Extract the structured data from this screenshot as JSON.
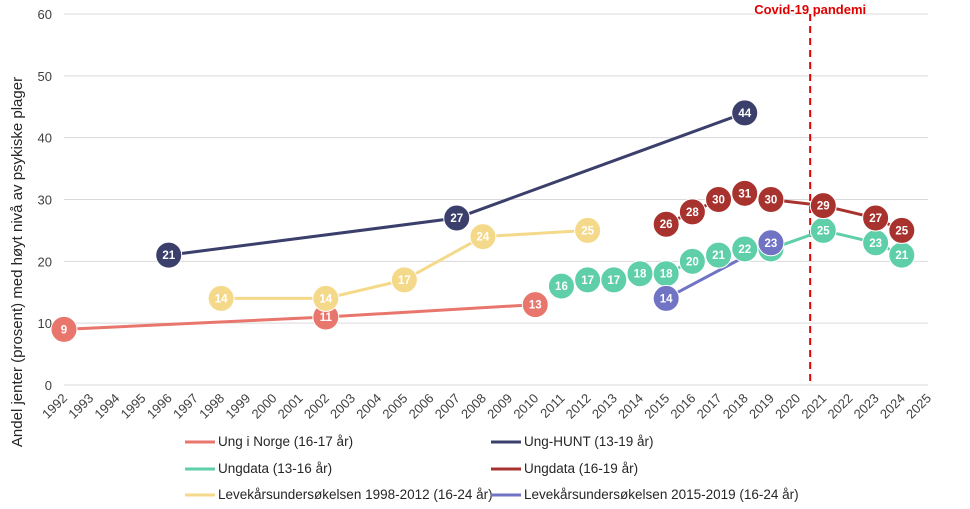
{
  "chart_data": {
    "type": "line",
    "title": "",
    "xlabel": "",
    "ylabel": "Andel jenter (prosent) med høyt nivå av psykiske plager",
    "xlim": [
      1992,
      2025
    ],
    "ylim": [
      0,
      60
    ],
    "y_ticks": [
      0,
      10,
      20,
      30,
      40,
      50,
      60
    ],
    "x_ticks": [
      1992,
      1993,
      1994,
      1995,
      1996,
      1997,
      1998,
      1999,
      2000,
      2001,
      2002,
      2003,
      2004,
      2005,
      2006,
      2007,
      2008,
      2009,
      2010,
      2011,
      2012,
      2013,
      2014,
      2015,
      2016,
      2017,
      2018,
      2019,
      2020,
      2021,
      2022,
      2023,
      2024,
      2025
    ],
    "grid": "horizontal",
    "legend_position": "bottom",
    "annotation": {
      "label": "Covid-19 pandemi",
      "x": 2020.5,
      "color": "#e00000"
    },
    "series": [
      {
        "name": "Ung i Norge (16-17 år)",
        "color": "#e8766d",
        "points": [
          [
            1992,
            9
          ],
          [
            2002,
            11
          ],
          [
            2010,
            13
          ]
        ]
      },
      {
        "name": "Ung-HUNT (13-19 år)",
        "color": "#3b3f6b",
        "points": [
          [
            1996,
            21
          ],
          [
            2007,
            27
          ],
          [
            2018,
            44
          ]
        ]
      },
      {
        "name": "Ungdata (13-16 år)",
        "color": "#5ecfa8",
        "points": [
          [
            2011,
            16
          ],
          [
            2012,
            17
          ],
          [
            2013,
            17
          ],
          [
            2014,
            18
          ],
          [
            2015,
            18
          ],
          [
            2016,
            20
          ],
          [
            2017,
            21
          ],
          [
            2018,
            22
          ],
          [
            2019,
            22
          ],
          [
            2021,
            25
          ],
          [
            2023,
            23
          ],
          [
            2024,
            21
          ]
        ]
      },
      {
        "name": "Ungdata (16-19 år)",
        "color": "#a8322d",
        "points": [
          [
            2015,
            26
          ],
          [
            2016,
            28
          ],
          [
            2017,
            30
          ],
          [
            2018,
            31
          ],
          [
            2019,
            30
          ],
          [
            2021,
            29
          ],
          [
            2023,
            27
          ],
          [
            2024,
            25
          ]
        ]
      },
      {
        "name": "Levekårsundersøkelsen 1998-2012 (16-24 år)",
        "color": "#f5d98a",
        "points": [
          [
            1998,
            14
          ],
          [
            2002,
            14
          ],
          [
            2005,
            17
          ],
          [
            2008,
            24
          ],
          [
            2012,
            25
          ]
        ]
      },
      {
        "name": "Levekårsundersøkelsen 2015-2019 (16-24 år)",
        "color": "#7173c4",
        "points": [
          [
            2015,
            14
          ],
          [
            2019,
            23
          ]
        ]
      }
    ]
  }
}
